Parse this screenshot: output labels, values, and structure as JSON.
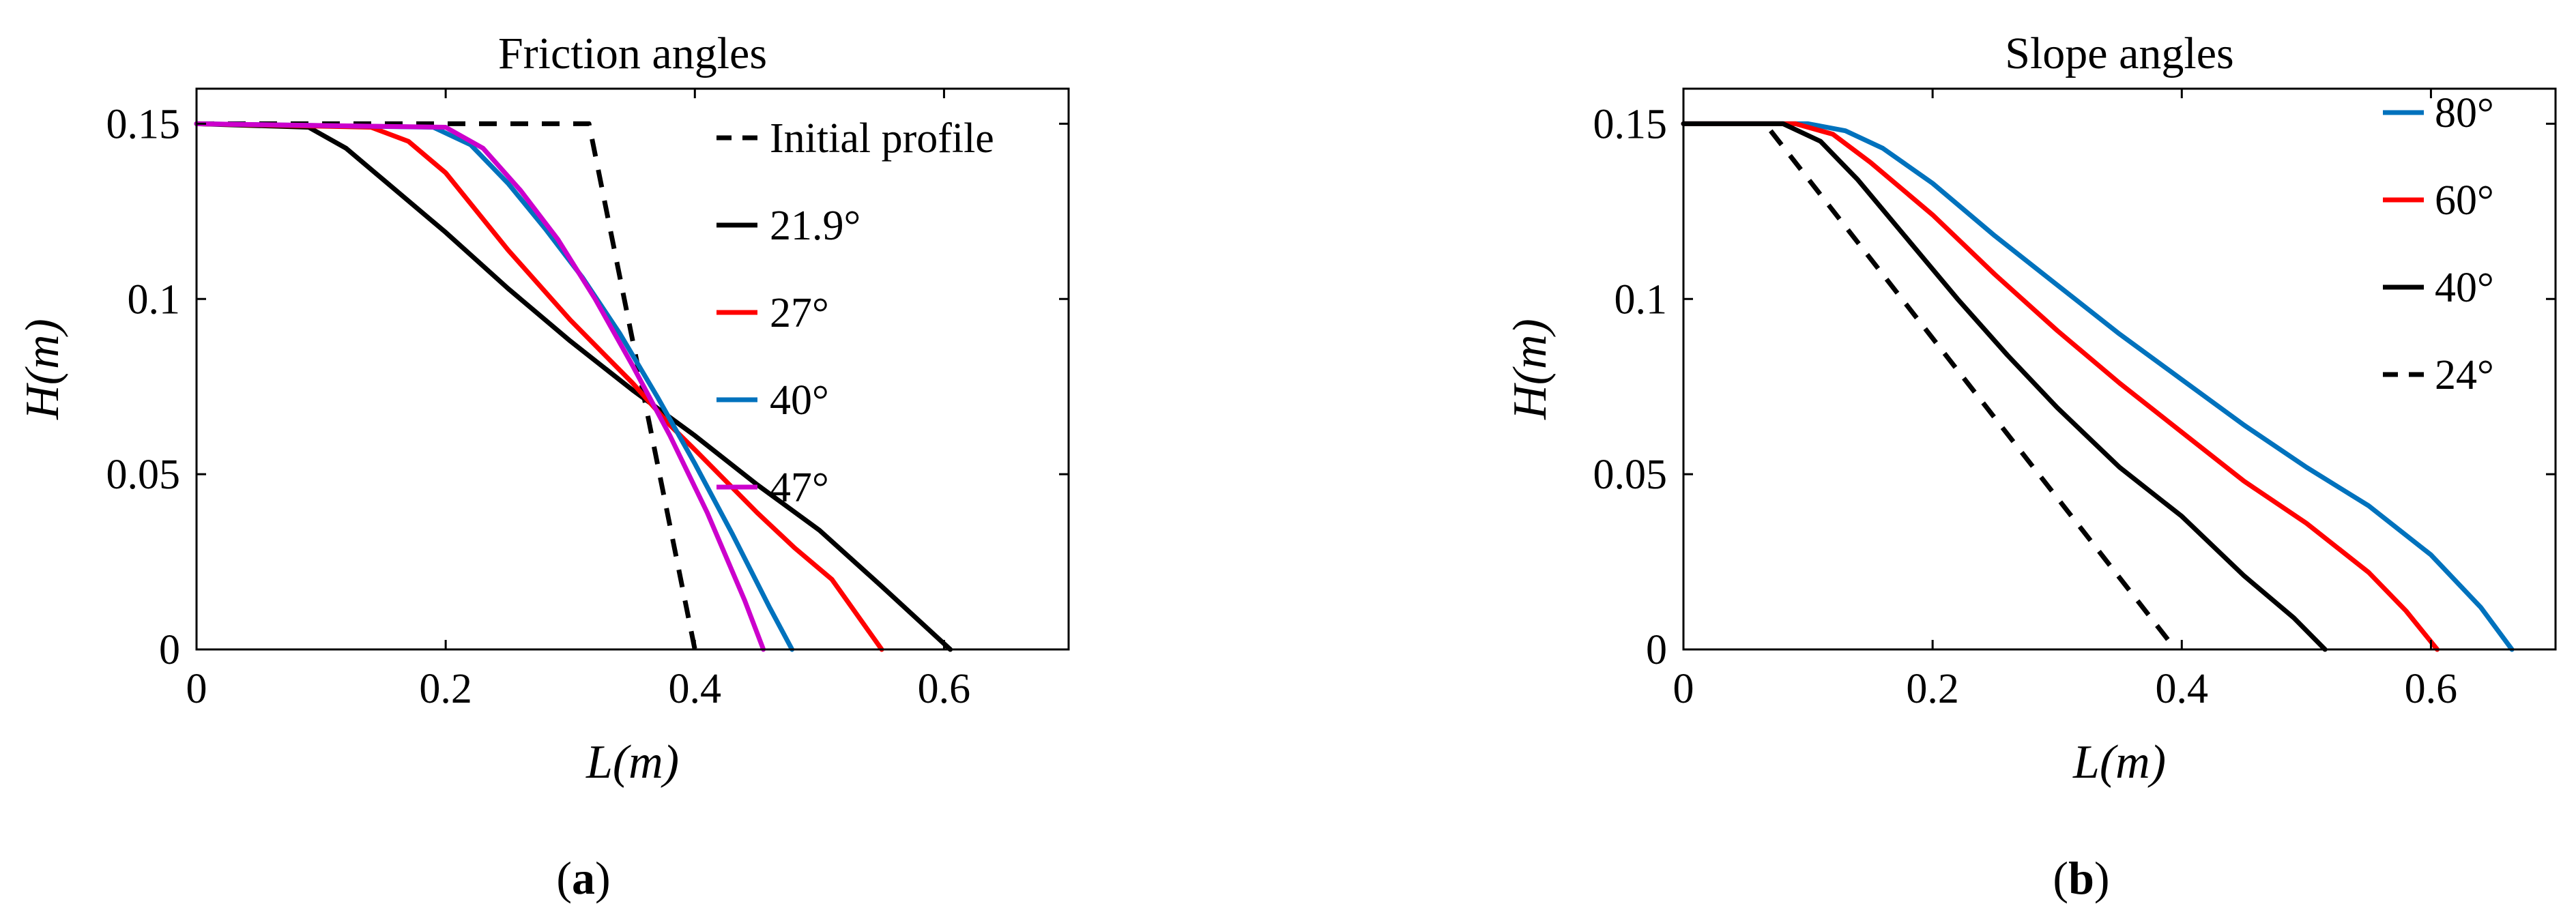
{
  "chart_data": [
    {
      "type": "line",
      "title": "Friction angles",
      "xlabel": "L(m)",
      "ylabel": "H(m)",
      "xlim": [
        0,
        0.7
      ],
      "ylim": [
        0,
        0.16
      ],
      "xticks": [
        0,
        0.2,
        0.4,
        0.6
      ],
      "xtick_labels": [
        "0",
        "0.2",
        "0.4",
        "0.6"
      ],
      "yticks": [
        0,
        0.05,
        0.1,
        0.15
      ],
      "ytick_labels": [
        "0",
        "0.05",
        "0.1",
        "0.15"
      ],
      "grid": false,
      "legend_position": "top-right",
      "panel_label": {
        "open": "(",
        "letter": "a",
        "close": ")"
      },
      "series": [
        {
          "name": "Initial profile",
          "color": "#000000",
          "dash": "dashed",
          "x": [
            0,
            0.315,
            0.4
          ],
          "y": [
            0.15,
            0.15,
            0.0
          ]
        },
        {
          "name": "21.9°",
          "color": "#000000",
          "dash": "solid",
          "x": [
            0,
            0.09,
            0.12,
            0.15,
            0.2,
            0.25,
            0.3,
            0.35,
            0.4,
            0.45,
            0.5,
            0.55,
            0.605
          ],
          "y": [
            0.15,
            0.149,
            0.143,
            0.134,
            0.119,
            0.103,
            0.088,
            0.074,
            0.061,
            0.047,
            0.034,
            0.018,
            0.0
          ]
        },
        {
          "name": "27°",
          "color": "#ff0000",
          "dash": "solid",
          "x": [
            0,
            0.14,
            0.17,
            0.2,
            0.25,
            0.3,
            0.35,
            0.38,
            0.4,
            0.45,
            0.48,
            0.51,
            0.53,
            0.55
          ],
          "y": [
            0.15,
            0.149,
            0.145,
            0.136,
            0.114,
            0.094,
            0.076,
            0.064,
            0.057,
            0.039,
            0.029,
            0.02,
            0.01,
            0.0
          ]
        },
        {
          "name": "40°",
          "color": "#0072bd",
          "dash": "solid",
          "x": [
            0,
            0.19,
            0.22,
            0.25,
            0.28,
            0.31,
            0.34,
            0.37,
            0.4,
            0.43,
            0.46,
            0.478
          ],
          "y": [
            0.15,
            0.149,
            0.144,
            0.133,
            0.12,
            0.106,
            0.09,
            0.072,
            0.053,
            0.033,
            0.012,
            0.0
          ]
        },
        {
          "name": "47°",
          "color": "#cc00cc",
          "dash": "solid",
          "x": [
            0,
            0.2,
            0.23,
            0.26,
            0.29,
            0.32,
            0.35,
            0.38,
            0.41,
            0.44,
            0.455
          ],
          "y": [
            0.15,
            0.149,
            0.143,
            0.131,
            0.117,
            0.1,
            0.081,
            0.061,
            0.039,
            0.014,
            0.0
          ]
        }
      ]
    },
    {
      "type": "line",
      "title": "Slope angles",
      "xlabel": "L(m)",
      "ylabel": "H(m)",
      "xlim": [
        0,
        0.7
      ],
      "ylim": [
        0,
        0.16
      ],
      "xticks": [
        0,
        0.2,
        0.4,
        0.6
      ],
      "xtick_labels": [
        "0",
        "0.2",
        "0.4",
        "0.6"
      ],
      "yticks": [
        0,
        0.05,
        0.1,
        0.15
      ],
      "ytick_labels": [
        "0",
        "0.05",
        "0.1",
        "0.15"
      ],
      "grid": false,
      "legend_position": "top-right",
      "panel_label": {
        "open": "(",
        "letter": "b",
        "close": ")"
      },
      "series": [
        {
          "name": "80°",
          "color": "#0072bd",
          "dash": "solid",
          "x": [
            0,
            0.1,
            0.13,
            0.16,
            0.2,
            0.25,
            0.3,
            0.35,
            0.4,
            0.45,
            0.5,
            0.55,
            0.6,
            0.64,
            0.665
          ],
          "y": [
            0.15,
            0.15,
            0.148,
            0.143,
            0.133,
            0.118,
            0.104,
            0.09,
            0.077,
            0.064,
            0.052,
            0.041,
            0.027,
            0.012,
            0.0
          ]
        },
        {
          "name": "60°",
          "color": "#ff0000",
          "dash": "solid",
          "x": [
            0,
            0.09,
            0.12,
            0.15,
            0.2,
            0.25,
            0.3,
            0.35,
            0.4,
            0.45,
            0.5,
            0.55,
            0.58,
            0.605
          ],
          "y": [
            0.15,
            0.15,
            0.147,
            0.139,
            0.124,
            0.107,
            0.091,
            0.076,
            0.062,
            0.048,
            0.036,
            0.022,
            0.011,
            0.0
          ]
        },
        {
          "name": "40°",
          "color": "#000000",
          "dash": "solid",
          "x": [
            0,
            0.08,
            0.11,
            0.14,
            0.18,
            0.22,
            0.26,
            0.3,
            0.35,
            0.4,
            0.45,
            0.49,
            0.515
          ],
          "y": [
            0.15,
            0.15,
            0.145,
            0.134,
            0.117,
            0.1,
            0.084,
            0.069,
            0.052,
            0.038,
            0.021,
            0.009,
            0.0
          ]
        },
        {
          "name": "24°",
          "color": "#000000",
          "dash": "dashed",
          "x": [
            0.07,
            0.395
          ],
          "y": [
            0.148,
            0.0
          ]
        }
      ]
    }
  ]
}
